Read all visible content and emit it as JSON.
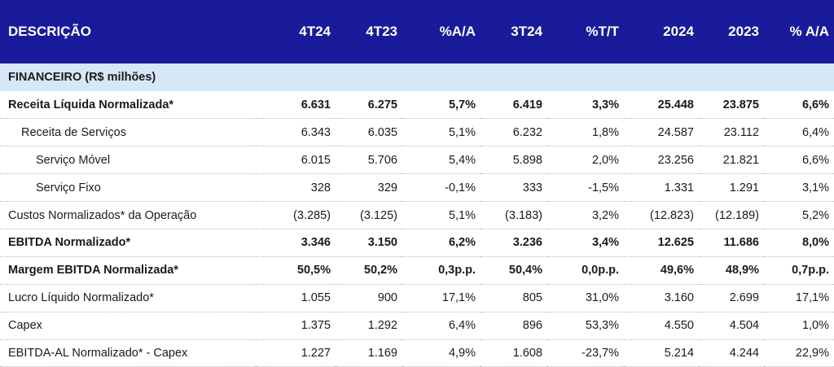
{
  "header": [
    "DESCRIÇÃO",
    "4T24",
    "4T23",
    "%A/A",
    "3T24",
    "%T/T",
    "2024",
    "2023",
    "% A/A"
  ],
  "section_title": "FINANCEIRO (R$ milhões)",
  "rows": [
    {
      "label": "Receita Líquida Normalizada*",
      "values": [
        "6.631",
        "6.275",
        "5,7%",
        "6.419",
        "3,3%",
        "25.448",
        "23.875",
        "6,6%"
      ]
    },
    {
      "label": "Receita de Serviços",
      "values": [
        "6.343",
        "6.035",
        "5,1%",
        "6.232",
        "1,8%",
        "24.587",
        "23.112",
        "6,4%"
      ]
    },
    {
      "label": "Serviço Móvel",
      "values": [
        "6.015",
        "5.706",
        "5,4%",
        "5.898",
        "2,0%",
        "23.256",
        "21.821",
        "6,6%"
      ]
    },
    {
      "label": "Serviço Fixo",
      "values": [
        "328",
        "329",
        "-0,1%",
        "333",
        "-1,5%",
        "1.331",
        "1.291",
        "3,1%"
      ]
    },
    {
      "label": "Custos Normalizados* da Operação",
      "values": [
        "(3.285)",
        "(3.125)",
        "5,1%",
        "(3.183)",
        "3,2%",
        "(12.823)",
        "(12.189)",
        "5,2%"
      ]
    },
    {
      "label": "EBITDA Normalizado*",
      "values": [
        "3.346",
        "3.150",
        "6,2%",
        "3.236",
        "3,4%",
        "12.625",
        "11.686",
        "8,0%"
      ]
    },
    {
      "label": "Margem EBITDA Normalizada*",
      "values": [
        "50,5%",
        "50,2%",
        "0,3p.p.",
        "50,4%",
        "0,0p.p.",
        "49,6%",
        "48,9%",
        "0,7p.p."
      ]
    },
    {
      "label": "Lucro Líquido Normalizado*",
      "values": [
        "1.055",
        "900",
        "17,1%",
        "805",
        "31,0%",
        "3.160",
        "2.699",
        "17,1%"
      ]
    },
    {
      "label": "Capex",
      "values": [
        "1.375",
        "1.292",
        "6,4%",
        "896",
        "53,3%",
        "4.550",
        "4.504",
        "1,0%"
      ]
    },
    {
      "label": "EBITDA-AL Normalizado* - Capex",
      "values": [
        "1.227",
        "1.169",
        "4,9%",
        "1.608",
        "-23,7%",
        "5.214",
        "4.244",
        "22,9%"
      ]
    }
  ],
  "colors": {
    "header_bg": "#1a1b9a",
    "section_bg": "#d6e7f8"
  }
}
